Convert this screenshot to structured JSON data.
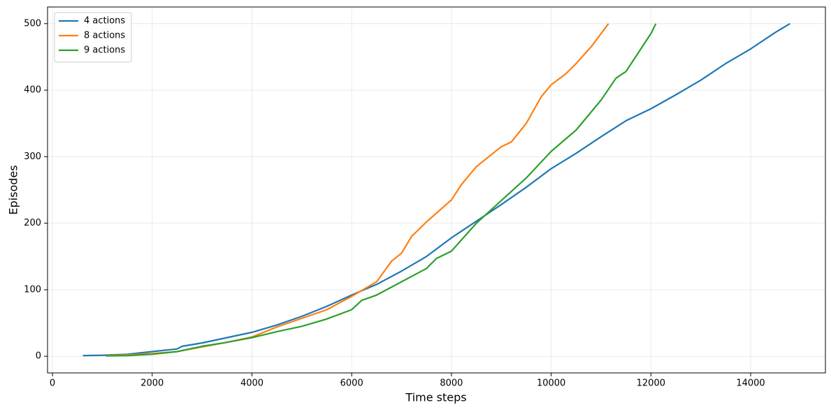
{
  "chart_data": {
    "type": "line",
    "xlabel": "Time steps",
    "ylabel": "Episodes",
    "xlim": [
      -99,
      15499
    ],
    "ylim": [
      -25,
      525
    ],
    "xticks": [
      0,
      2000,
      4000,
      6000,
      8000,
      10000,
      12000,
      14000
    ],
    "yticks": [
      0,
      100,
      200,
      300,
      400,
      500
    ],
    "grid": true,
    "legend": "upper-left",
    "series": [
      {
        "name": "4 actions",
        "color": "#1f77b4",
        "x": [
          610,
          1000,
          1500,
          2000,
          2500,
          2600,
          3000,
          3500,
          4000,
          4500,
          5000,
          5500,
          6000,
          6500,
          7000,
          7500,
          8000,
          8500,
          9000,
          9500,
          10000,
          10500,
          11000,
          11500,
          12000,
          12500,
          13000,
          13500,
          14000,
          14500,
          14790
        ],
        "values": [
          1,
          1.5,
          3,
          7,
          11,
          15,
          20,
          28,
          36,
          47,
          60,
          75,
          92,
          108,
          128,
          150,
          178,
          203,
          228,
          254,
          282,
          305,
          330,
          354,
          372,
          393,
          415,
          440,
          462,
          487,
          500
        ]
      },
      {
        "name": "8 actions",
        "color": "#ff7f0e",
        "x": [
          1070,
          1500,
          2000,
          2500,
          3000,
          3500,
          4000,
          4500,
          5000,
          5500,
          6000,
          6500,
          6800,
          7000,
          7200,
          7500,
          8000,
          8200,
          8500,
          9000,
          9200,
          9500,
          9800,
          10000,
          10300,
          10500,
          10800,
          11000,
          11150
        ],
        "values": [
          1,
          2,
          4,
          7,
          14,
          21,
          29,
          44,
          57,
          70,
          90,
          112,
          143,
          155,
          180,
          202,
          235,
          258,
          285,
          315,
          322,
          350,
          390,
          408,
          425,
          440,
          465,
          485,
          500
        ]
      },
      {
        "name": "9 actions",
        "color": "#2ca02c",
        "x": [
          1070,
          1500,
          2000,
          2500,
          3000,
          3500,
          4000,
          4500,
          5000,
          5500,
          6000,
          6200,
          6500,
          7000,
          7500,
          7700,
          8000,
          8500,
          9000,
          9500,
          10000,
          10500,
          11000,
          11300,
          11500,
          12000,
          12100
        ],
        "values": [
          0.5,
          1,
          3,
          7,
          15,
          21,
          28,
          37,
          45,
          56,
          70,
          84,
          92,
          112,
          132,
          147,
          158,
          200,
          234,
          268,
          308,
          340,
          385,
          418,
          428,
          485,
          500
        ]
      }
    ]
  }
}
